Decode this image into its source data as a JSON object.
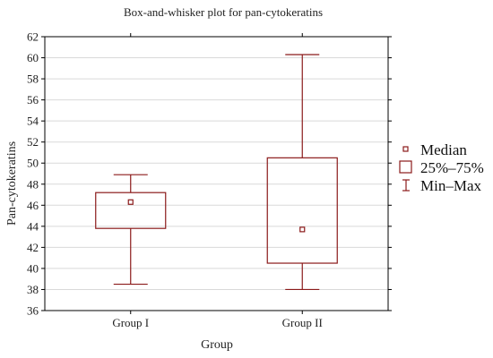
{
  "chart_data": {
    "type": "box",
    "title": "Box-and-whisker plot for pan-cytokeratins",
    "xlabel": "Group",
    "ylabel": "Pan-cytokeratins",
    "ylim": [
      36,
      62
    ],
    "yticks": [
      36,
      38,
      40,
      42,
      44,
      46,
      48,
      50,
      52,
      54,
      56,
      58,
      60,
      62
    ],
    "grid": true,
    "legend_position": "right",
    "categories": [
      "Group I",
      "Group II"
    ],
    "boxes": [
      {
        "category": "Group I",
        "min": 38.5,
        "q1": 43.8,
        "median": 46.3,
        "q3": 47.2,
        "max": 48.9
      },
      {
        "category": "Group II",
        "min": 38.0,
        "q1": 40.5,
        "median": 43.7,
        "q3": 50.5,
        "max": 60.3
      }
    ],
    "legend": [
      "Median",
      "25%–75%",
      "Min–Max"
    ],
    "color": "#8b1a1a"
  }
}
